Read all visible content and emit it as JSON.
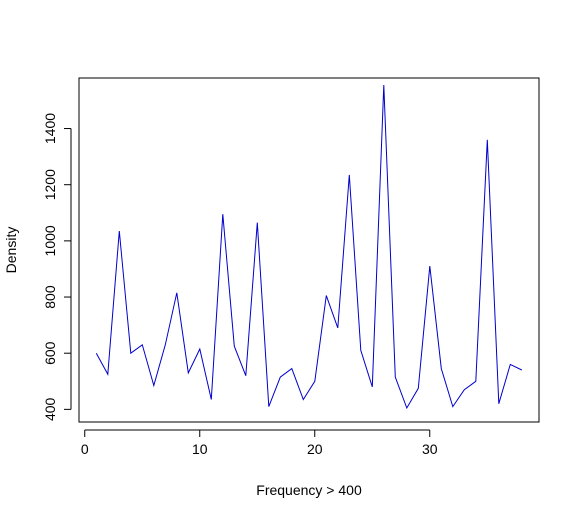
{
  "chart_data": {
    "type": "line",
    "title": "",
    "xlabel": "Frequency > 400",
    "ylabel": "Density",
    "xlim": [
      -0.5,
      39.5
    ],
    "ylim": [
      355,
      1580
    ],
    "x_ticks": [
      0,
      10,
      20,
      30
    ],
    "y_ticks": [
      400,
      600,
      800,
      1000,
      1200,
      1400
    ],
    "grid": false,
    "legend": "none",
    "line_color": "#0000cc",
    "series": [
      {
        "x": [
          1,
          2,
          3,
          4,
          5,
          6,
          7,
          8,
          9,
          10,
          11,
          12,
          13,
          14,
          15,
          16,
          17,
          18,
          19,
          20,
          21,
          22,
          23,
          24,
          25,
          26,
          27,
          28,
          29,
          30,
          31,
          32,
          33,
          34,
          35,
          36,
          37,
          38
        ],
        "values": [
          600,
          525,
          1035,
          600,
          630,
          485,
          630,
          815,
          530,
          615,
          435,
          1095,
          625,
          520,
          1065,
          410,
          515,
          545,
          435,
          500,
          805,
          690,
          1235,
          610,
          480,
          1555,
          515,
          405,
          475,
          910,
          545,
          410,
          470,
          500,
          1360,
          420,
          560,
          540
        ]
      }
    ]
  }
}
